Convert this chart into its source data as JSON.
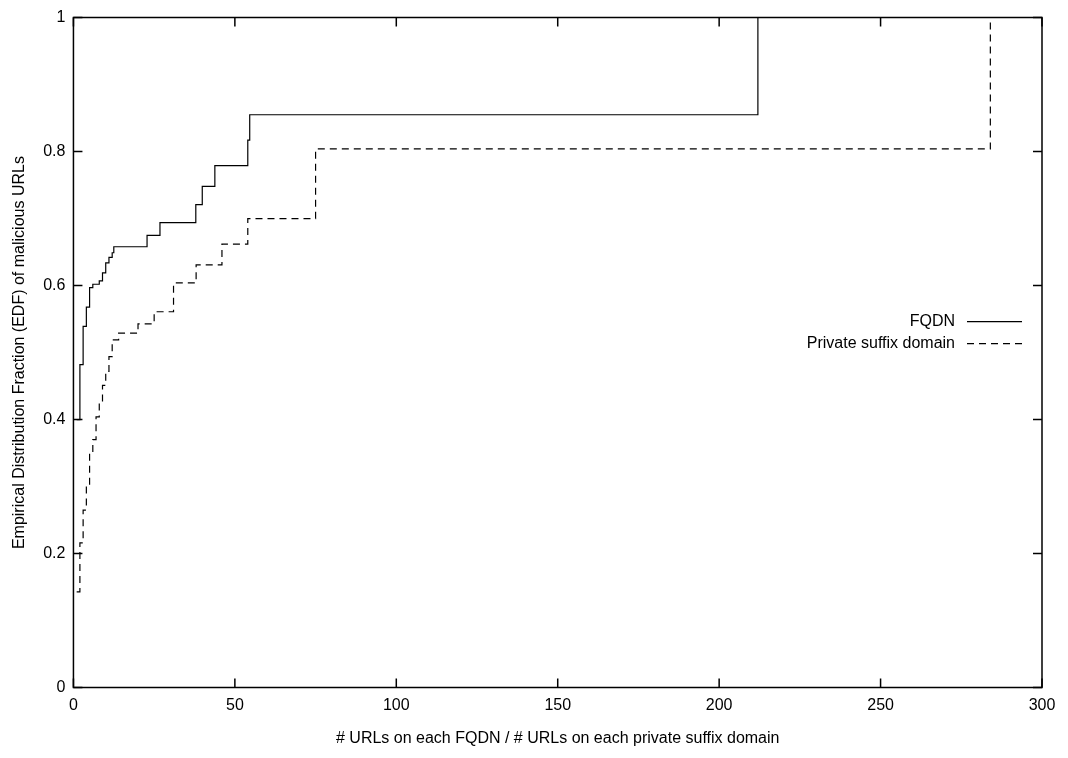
{
  "chart_data": {
    "type": "step",
    "xlabel": "# URLs on each FQDN / # URLs on each private suffix domain",
    "ylabel": "Empirical Distribution Fraction (EDF) of malicious URLs",
    "xlim": [
      0,
      300
    ],
    "xticks": [
      0,
      50,
      100,
      150,
      200,
      250,
      300
    ],
    "ylim": [
      0,
      1
    ],
    "yticks": [
      0,
      0.2,
      0.4,
      0.6,
      0.8,
      1
    ],
    "grid": false,
    "legend": "right",
    "marker": "none",
    "series": [
      {
        "name": "FQDN",
        "color": "#000000",
        "line_style": "solid",
        "x": [
          1,
          2,
          3,
          4,
          5,
          6,
          8,
          9,
          10,
          11,
          12,
          12.5,
          22.8,
          26.8,
          37.9,
          39.9,
          43.8,
          54,
          54.6,
          212
        ],
        "values": [
          0.4,
          0.482,
          0.539,
          0.568,
          0.597,
          0.602,
          0.607,
          0.619,
          0.634,
          0.642,
          0.649,
          0.658,
          0.675,
          0.694,
          0.721,
          0.748,
          0.779,
          0.817,
          0.855,
          1
        ]
      },
      {
        "name": "Private suffix domain",
        "color": "#000000",
        "line_style": "dashed",
        "x": [
          1,
          2,
          3,
          4,
          5,
          6,
          7,
          8,
          9,
          10,
          11,
          12,
          14,
          20,
          25,
          31,
          38,
          46,
          54,
          75,
          284
        ],
        "values": [
          0.143,
          0.216,
          0.265,
          0.302,
          0.35,
          0.37,
          0.404,
          0.426,
          0.451,
          0.472,
          0.494,
          0.519,
          0.529,
          0.543,
          0.561,
          0.604,
          0.631,
          0.662,
          0.7,
          0.804,
          1
        ]
      }
    ]
  }
}
